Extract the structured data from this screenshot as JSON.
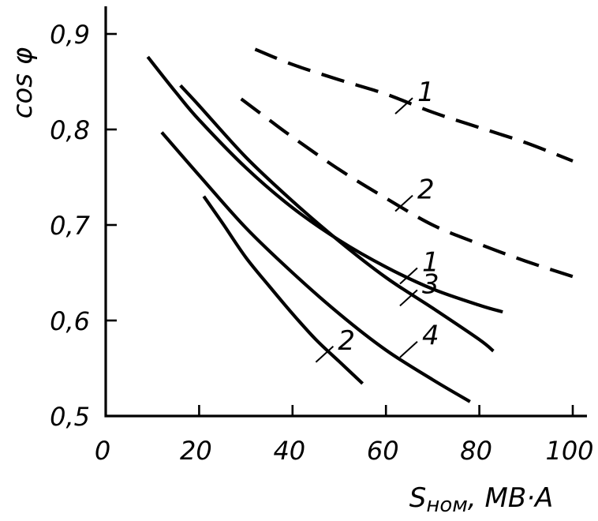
{
  "chart_data": {
    "type": "line",
    "xlabel": "S",
    "xlabel_subscript": "ном",
    "xlabel_unit": ", МВ·А",
    "ylabel": "cos φ",
    "xlim": [
      0,
      100
    ],
    "ylim": [
      0.5,
      0.9
    ],
    "xticks": [
      "0",
      "20",
      "40",
      "60",
      "80",
      "100"
    ],
    "yticks": [
      "0,5",
      "0,6",
      "0,7",
      "0,8",
      "0,9"
    ],
    "grid": false,
    "series": [
      {
        "label": "1",
        "style": "dashed",
        "label_at": [
          62,
          0.823
        ],
        "x": [
          32,
          40,
          50,
          60,
          70,
          80,
          90,
          100
        ],
        "y": [
          0.884,
          0.868,
          0.852,
          0.837,
          0.818,
          0.802,
          0.786,
          0.767
        ]
      },
      {
        "label": "2",
        "style": "dashed",
        "label_at": [
          62,
          0.721
        ],
        "x": [
          29,
          35,
          40,
          50,
          60,
          70,
          80,
          90,
          100
        ],
        "y": [
          0.832,
          0.81,
          0.792,
          0.758,
          0.728,
          0.7,
          0.68,
          0.662,
          0.646
        ]
      },
      {
        "label": "1",
        "style": "solid",
        "label_at": [
          63,
          0.645
        ],
        "x": [
          9,
          15,
          20,
          30,
          40,
          50,
          60,
          70,
          80,
          85
        ],
        "y": [
          0.876,
          0.839,
          0.81,
          0.76,
          0.718,
          0.684,
          0.656,
          0.633,
          0.616,
          0.609
        ]
      },
      {
        "label": "3",
        "style": "solid",
        "label_at": [
          63,
          0.622
        ],
        "x": [
          16,
          20,
          30,
          40,
          50,
          60,
          70,
          80,
          83
        ],
        "y": [
          0.846,
          0.825,
          0.771,
          0.725,
          0.683,
          0.645,
          0.613,
          0.58,
          0.568
        ]
      },
      {
        "label": "4",
        "style": "solid",
        "label_at": [
          63,
          0.568
        ],
        "x": [
          12,
          20,
          30,
          40,
          50,
          60,
          70,
          78
        ],
        "y": [
          0.797,
          0.752,
          0.697,
          0.65,
          0.607,
          0.569,
          0.538,
          0.515
        ]
      },
      {
        "label": "2",
        "style": "solid",
        "label_at": [
          45,
          0.563
        ],
        "x": [
          21,
          25,
          30,
          35,
          40,
          45,
          50,
          55
        ],
        "y": [
          0.73,
          0.702,
          0.666,
          0.636,
          0.607,
          0.58,
          0.557,
          0.534
        ]
      }
    ]
  }
}
